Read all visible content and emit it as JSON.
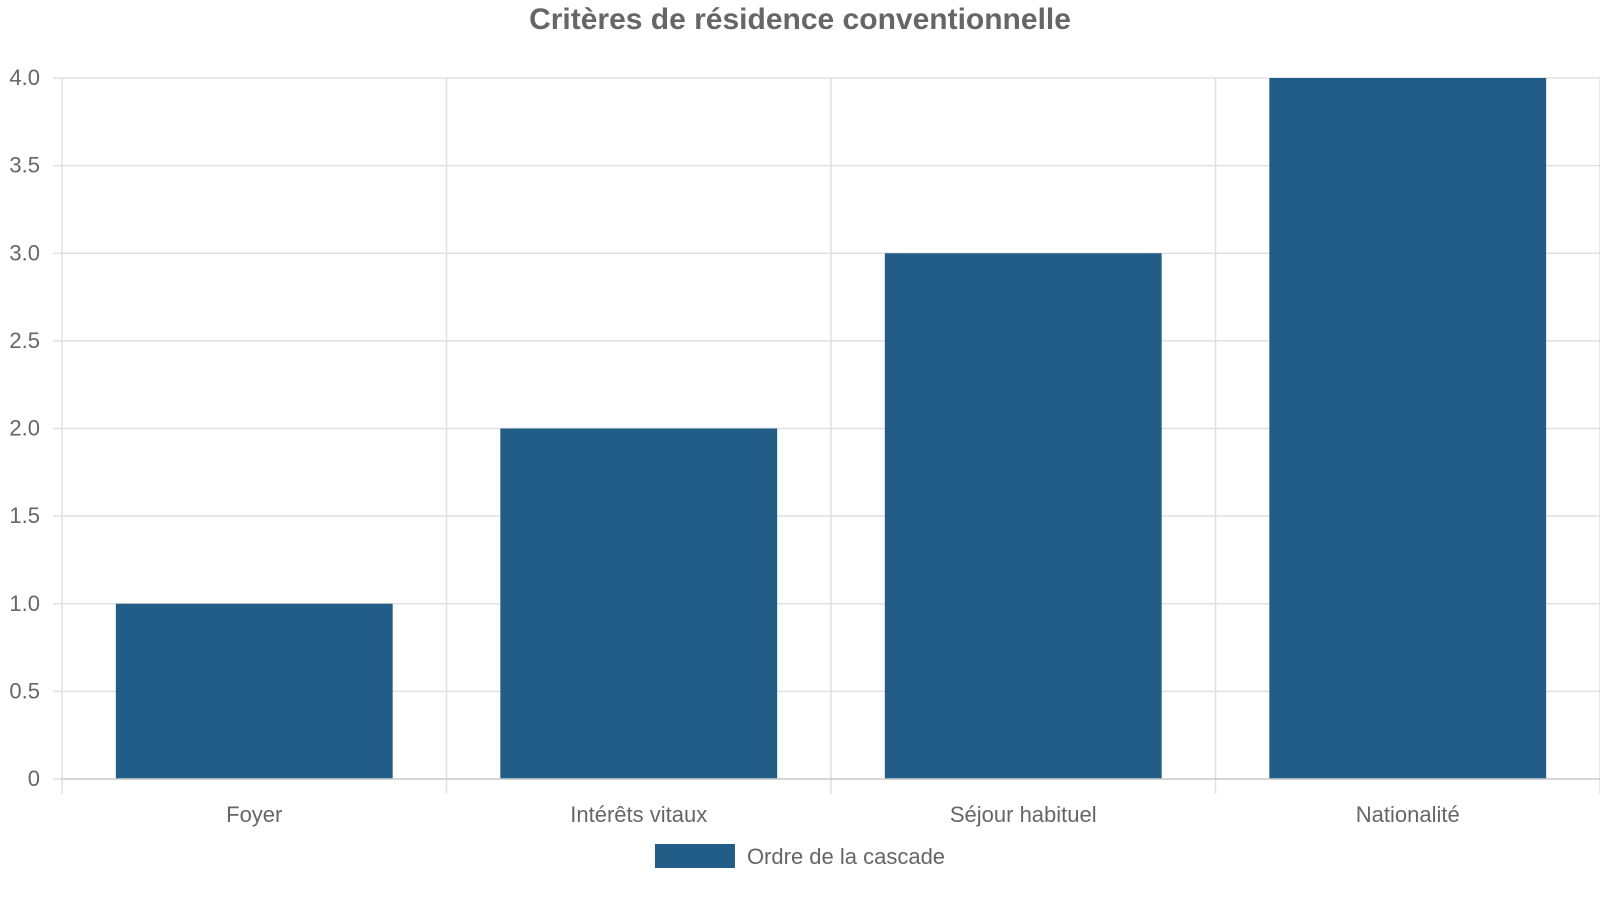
{
  "chart_data": {
    "type": "bar",
    "title": "Critères de résidence conventionnelle",
    "categories": [
      "Foyer",
      "Intérêts vitaux",
      "Séjour habituel",
      "Nationalité"
    ],
    "series": [
      {
        "name": "Ordre de la cascade",
        "values": [
          1,
          2,
          3,
          4
        ],
        "color": "#215d87"
      }
    ],
    "ylim": [
      0,
      4
    ],
    "yticks": [
      "0",
      "0.5",
      "1.0",
      "1.5",
      "2.0",
      "2.5",
      "3.0",
      "3.5",
      "4.0"
    ],
    "grid": true,
    "legend_position": "bottom"
  }
}
